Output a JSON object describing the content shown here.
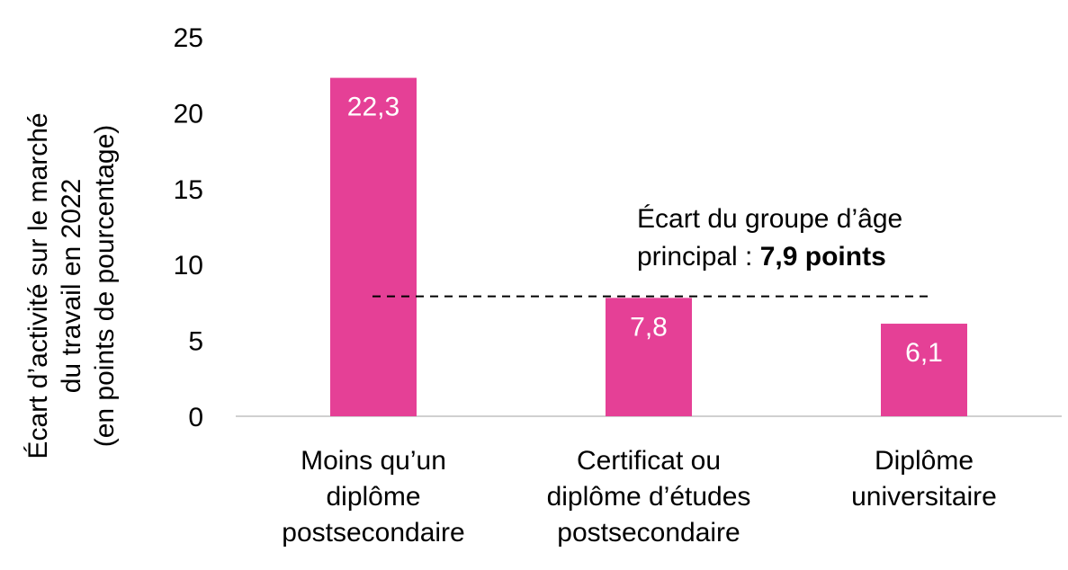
{
  "chart_data": {
    "type": "bar",
    "categories": [
      [
        "Moins qu’un",
        "diplôme",
        "postsecondaire"
      ],
      [
        "Certificat ou",
        "diplôme d’études",
        "postsecondaire"
      ],
      [
        "Diplôme",
        "universitaire"
      ]
    ],
    "values": [
      22.3,
      7.8,
      6.1
    ],
    "data_labels": [
      "22,3",
      "7,8",
      "6,1"
    ],
    "ylabel": [
      "Écart d’activité sur le marché",
      "du travail en 2022",
      "(en points de pourcentage)"
    ],
    "ylim": [
      0,
      25
    ],
    "yticks": [
      0,
      5,
      10,
      15,
      20,
      25
    ],
    "grid": false,
    "legend": "none",
    "bar_color": "#e54096",
    "reference_line": {
      "value": 7.9,
      "style": "dashed",
      "annotation_line1": "Écart du groupe d’âge",
      "annotation_line2_prefix": "principal : ",
      "annotation_line2_bold": "7,9 points"
    }
  }
}
